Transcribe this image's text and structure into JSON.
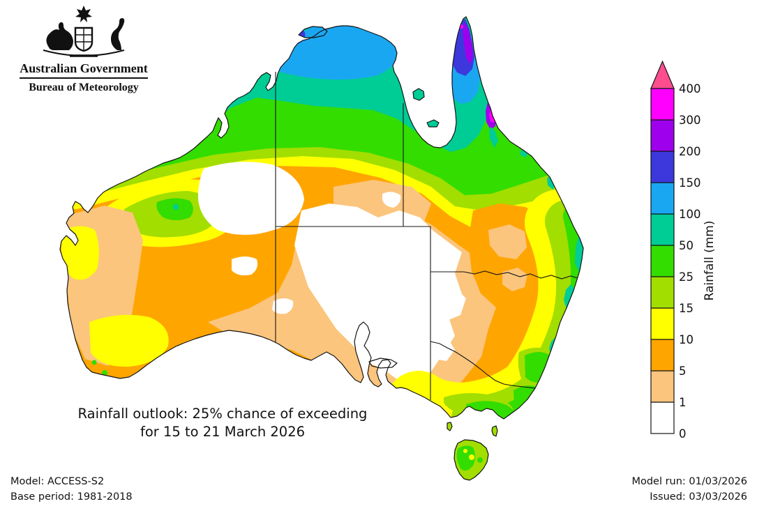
{
  "logo": {
    "line1": "Australian Government",
    "line2": "Bureau of Meteorology"
  },
  "title": {
    "line1": "Rainfall outlook: 25% chance of exceeding",
    "line2": "for 15 to 21 March 2026"
  },
  "footer": {
    "model": "Model: ACCESS-S2",
    "base_period": "Base period: 1981-2018",
    "model_run": "Model run: 01/03/2026",
    "issued": "Issued: 03/03/2026"
  },
  "legend": {
    "axis_label": "Rainfall (mm)",
    "boundaries": [
      "0",
      "1",
      "5",
      "10",
      "15",
      "25",
      "50",
      "100",
      "150",
      "200",
      "300",
      "400"
    ],
    "block_keys": [
      "white",
      "tan",
      "orange",
      "yellow",
      "ygreen",
      "green",
      "teal",
      "azure",
      "royal",
      "violet",
      "magenta"
    ],
    "arrow_key": "pink"
  },
  "palette": {
    "white": "#FFFFFF",
    "tan": "#FBC57D",
    "orange": "#FFA500",
    "yellow": "#FFFF00",
    "ygreen": "#A2DE00",
    "green": "#33DD00",
    "teal": "#00CC96",
    "azure": "#1AA7F2",
    "royal": "#3C38DC",
    "violet": "#9E00EE",
    "magenta": "#FF00FF",
    "pink": "#FF4D8D",
    "line": "#141414"
  }
}
